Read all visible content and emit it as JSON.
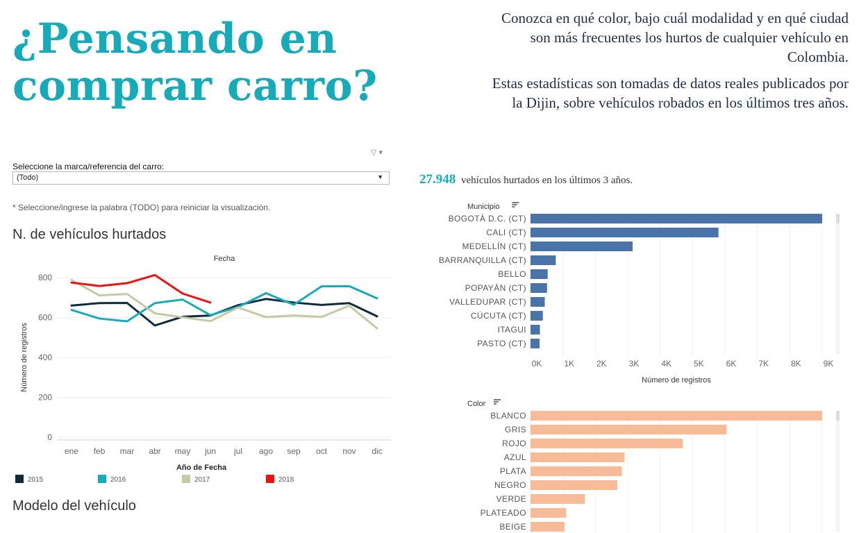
{
  "hero_title": "¿Pensando en comprar carro?",
  "intro": {
    "p1": "Conozca en qué color,  bajo cuál modalidad y en qué ciudad son más frecuentes los hurtos de cualquier vehículo en Colombia.",
    "p2": "Estas estadísticas son tomadas de datos reales publicados por la Dijin, sobre vehículos robados en los últimos tres años."
  },
  "filter": {
    "label": "Seleccione la marca/referencia del carro:",
    "value": "(Todo)",
    "note": "* Seleccione/ingrese la palabra (TODO) para reiniciar la visualización."
  },
  "kpi": {
    "value": "27.948",
    "text": "vehículos hurtados en los últimos 3 años."
  },
  "sections": {
    "line_title": "N. de vehículos hurtados",
    "model_title": "Modelo del vehículo"
  },
  "chart_data": [
    {
      "type": "line",
      "title": "Fecha",
      "ylabel": "Número de registros",
      "ylim": [
        0,
        800
      ],
      "yticks": [
        0,
        200,
        400,
        600,
        800
      ],
      "categories": [
        "ene",
        "feb",
        "mar",
        "abr",
        "may",
        "jun",
        "jul",
        "ago",
        "sep",
        "oct",
        "nov",
        "dic"
      ],
      "legend_title": "Año de Fecha",
      "series": [
        {
          "name": "2015",
          "color": "#0e2a3f",
          "values": [
            660,
            672,
            673,
            560,
            604,
            610,
            662,
            693,
            675,
            663,
            672,
            606
          ]
        },
        {
          "name": "2016",
          "color": "#17aab8",
          "values": [
            638,
            595,
            581,
            672,
            690,
            612,
            653,
            722,
            664,
            756,
            757,
            696
          ]
        },
        {
          "name": "2017",
          "color": "#c5c9a4",
          "values": [
            788,
            711,
            718,
            621,
            601,
            582,
            650,
            602,
            610,
            603,
            659,
            546
          ]
        },
        {
          "name": "2018",
          "color": "#ee1111",
          "values": [
            775,
            758,
            772,
            813,
            720,
            675,
            null,
            null,
            null,
            null,
            null,
            null
          ]
        }
      ]
    },
    {
      "type": "bar",
      "orientation": "horizontal",
      "header": "Municipio",
      "xlabel": "Número de registros",
      "xlim": [
        0,
        9000
      ],
      "xticks": [
        "0K",
        "1K",
        "2K",
        "3K",
        "4K",
        "5K",
        "6K",
        "7K",
        "8K",
        "9K"
      ],
      "color": "#4a74a7",
      "categories": [
        "BOGOTÁ D.C. (CT)",
        "CALI (CT)",
        "MEDELLÍN (CT)",
        "BARRANQUILLA (CT)",
        "BELLO",
        "POPAYÁN (CT)",
        "VALLEDUPAR (CT)",
        "CÚCUTA (CT)",
        "ITAGUI",
        "PASTO (CT)"
      ],
      "values": [
        9250,
        5800,
        3150,
        780,
        530,
        510,
        440,
        380,
        290,
        280
      ]
    },
    {
      "type": "bar",
      "orientation": "horizontal",
      "header": "Color",
      "xlim": [
        0,
        9000
      ],
      "color": "#f7bb97",
      "categories": [
        "BLANCO",
        "GRIS",
        "ROJO",
        "AZUL",
        "PLATA",
        "NEGRO",
        "VERDE",
        "PLATEADO",
        "BEIGE"
      ],
      "values": [
        9250,
        6050,
        4700,
        2900,
        2820,
        2680,
        1680,
        1100,
        1050
      ]
    }
  ]
}
